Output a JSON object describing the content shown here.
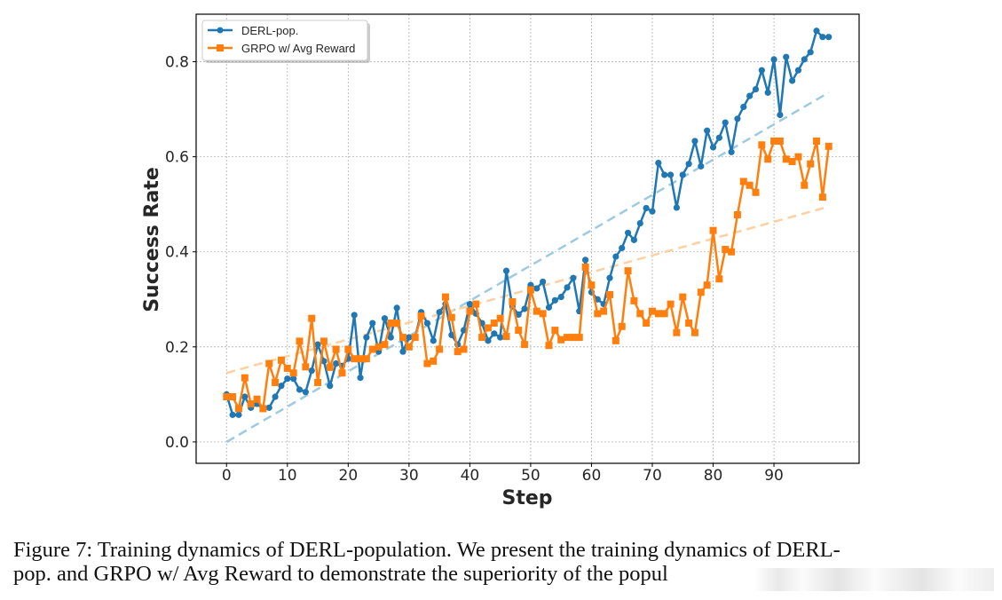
{
  "chart_data": {
    "type": "line",
    "title": "",
    "xlabel": "Step",
    "ylabel": "Success Rate",
    "xlim": [
      -5,
      104
    ],
    "ylim": [
      -0.045,
      0.9
    ],
    "xticks": [
      0,
      10,
      20,
      30,
      40,
      50,
      60,
      70,
      80,
      90
    ],
    "xtick_labels": [
      "0",
      "10",
      "20",
      "30",
      "40",
      "50",
      "60",
      "70",
      "80",
      "90"
    ],
    "yticks": [
      0.0,
      0.2,
      0.4,
      0.6,
      0.8
    ],
    "ytick_labels": [
      "0.0",
      "0.2",
      "0.4",
      "0.6",
      "0.8"
    ],
    "grid": true,
    "legend_position": "top-left",
    "x": [
      0,
      1,
      2,
      3,
      4,
      5,
      6,
      7,
      8,
      9,
      10,
      11,
      12,
      13,
      14,
      15,
      16,
      17,
      18,
      19,
      20,
      21,
      22,
      23,
      24,
      25,
      26,
      27,
      28,
      29,
      30,
      31,
      32,
      33,
      34,
      35,
      36,
      37,
      38,
      39,
      40,
      41,
      42,
      43,
      44,
      45,
      46,
      47,
      48,
      49,
      50,
      51,
      52,
      53,
      54,
      55,
      56,
      57,
      58,
      59,
      60,
      61,
      62,
      63,
      64,
      65,
      66,
      67,
      68,
      69,
      70,
      71,
      72,
      73,
      74,
      75,
      76,
      77,
      78,
      79,
      80,
      81,
      82,
      83,
      84,
      85,
      86,
      87,
      88,
      89,
      90,
      91,
      92,
      93,
      94,
      95,
      96,
      97,
      98,
      99
    ],
    "series": [
      {
        "name": "DERL-pop.",
        "color": "#1f77b4",
        "marker": "circle",
        "values": [
          0.1,
          0.057,
          0.057,
          0.095,
          0.072,
          0.08,
          0.07,
          0.072,
          0.095,
          0.118,
          0.133,
          0.133,
          0.11,
          0.105,
          0.15,
          0.205,
          0.17,
          0.118,
          0.165,
          0.16,
          0.175,
          0.267,
          0.135,
          0.22,
          0.25,
          0.19,
          0.26,
          0.22,
          0.282,
          0.19,
          0.22,
          0.22,
          0.273,
          0.25,
          0.213,
          0.273,
          0.29,
          0.225,
          0.205,
          0.235,
          0.29,
          0.27,
          0.25,
          0.213,
          0.228,
          0.22,
          0.36,
          0.285,
          0.268,
          0.28,
          0.33,
          0.323,
          0.337,
          0.283,
          0.298,
          0.305,
          0.325,
          0.345,
          0.275,
          0.383,
          0.315,
          0.3,
          0.29,
          0.345,
          0.39,
          0.408,
          0.44,
          0.425,
          0.46,
          0.492,
          0.485,
          0.587,
          0.562,
          0.562,
          0.493,
          0.562,
          0.585,
          0.633,
          0.58,
          0.655,
          0.62,
          0.64,
          0.672,
          0.61,
          0.68,
          0.705,
          0.728,
          0.742,
          0.782,
          0.735,
          0.805,
          0.688,
          0.81,
          0.76,
          0.782,
          0.805,
          0.82,
          0.865,
          0.852,
          0.852
        ]
      },
      {
        "name": "GRPO w/ Avg Reward",
        "color": "#ff7f0e",
        "marker": "square",
        "values": [
          0.095,
          0.095,
          0.07,
          0.135,
          0.08,
          0.09,
          0.07,
          0.165,
          0.125,
          0.172,
          0.155,
          0.145,
          0.212,
          0.158,
          0.26,
          0.125,
          0.212,
          0.157,
          0.195,
          0.145,
          0.195,
          0.175,
          0.175,
          0.175,
          0.195,
          0.2,
          0.205,
          0.25,
          0.25,
          0.22,
          0.2,
          0.22,
          0.265,
          0.165,
          0.17,
          0.195,
          0.305,
          0.262,
          0.19,
          0.195,
          0.275,
          0.29,
          0.22,
          0.24,
          0.25,
          0.26,
          0.222,
          0.295,
          0.235,
          0.205,
          0.32,
          0.275,
          0.27,
          0.203,
          0.235,
          0.215,
          0.22,
          0.22,
          0.22,
          0.368,
          0.33,
          0.27,
          0.275,
          0.31,
          0.213,
          0.243,
          0.36,
          0.297,
          0.27,
          0.25,
          0.275,
          0.27,
          0.27,
          0.29,
          0.23,
          0.305,
          0.25,
          0.23,
          0.315,
          0.33,
          0.445,
          0.343,
          0.405,
          0.4,
          0.478,
          0.548,
          0.54,
          0.525,
          0.625,
          0.595,
          0.633,
          0.633,
          0.595,
          0.59,
          0.6,
          0.54,
          0.585,
          0.633,
          0.515,
          0.622
        ]
      }
    ],
    "trendlines": [
      {
        "name": "DERL-pop. trend",
        "color": "#9ecae1",
        "style": "dashed",
        "x": [
          0,
          99
        ],
        "y": [
          0.0,
          0.735
        ]
      },
      {
        "name": "GRPO w/ Avg Reward trend",
        "color": "#fdd0a2",
        "style": "dashed",
        "x": [
          0,
          99
        ],
        "y": [
          0.145,
          0.495
        ]
      }
    ]
  },
  "legend": {
    "items": [
      {
        "label": "DERL-pop.",
        "color": "#1f77b4",
        "marker": "circle"
      },
      {
        "label": "GRPO w/ Avg Reward",
        "color": "#ff7f0e",
        "marker": "square"
      }
    ]
  },
  "caption": {
    "line1": "Figure 7:  Training dynamics of DERL-population.  We present the training dynamics of DERL-",
    "line2": "pop. and GRPO w/ Avg Reward to demonstrate the superiority of the popul"
  }
}
